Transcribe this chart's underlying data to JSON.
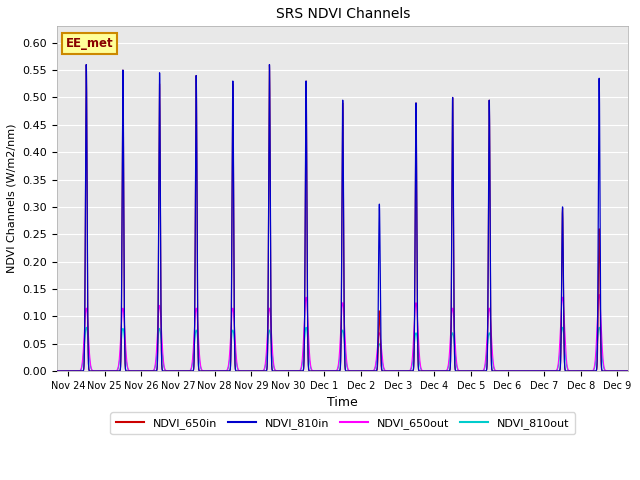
{
  "title": "SRS NDVI Channels",
  "xlabel": "Time",
  "ylabel": "NDVI Channels (W/m2/nm)",
  "ylim": [
    0.0,
    0.63
  ],
  "xlim": [
    -0.3,
    15.3
  ],
  "background_color": "#e8e8e8",
  "annotation_text": "EE_met",
  "annotation_bg": "#ffff99",
  "annotation_border": "#cc8800",
  "legend_labels": [
    "NDVI_650in",
    "NDVI_810in",
    "NDVI_650out",
    "NDVI_810out"
  ],
  "legend_colors": [
    "#cc0000",
    "#0000cc",
    "#ff00ff",
    "#00cccc"
  ],
  "xtick_positions": [
    0,
    1,
    2,
    3,
    4,
    5,
    6,
    7,
    8,
    9,
    10,
    11,
    12,
    13,
    14,
    15
  ],
  "xtick_labels": [
    "Nov 24",
    "Nov 25",
    "Nov 26",
    "Nov 27",
    "Nov 28",
    "Nov 29",
    "Nov 30",
    "Dec 1",
    "Dec 2",
    "Dec 3",
    "Dec 4",
    "Dec 5",
    "Dec 6",
    "Dec 7",
    "Dec 8",
    "Dec 9"
  ],
  "ytick_positions": [
    0.0,
    0.05,
    0.1,
    0.15,
    0.2,
    0.25,
    0.3,
    0.35,
    0.4,
    0.45,
    0.5,
    0.55,
    0.6
  ],
  "day_centers": [
    0.5,
    1.5,
    2.5,
    3.5,
    4.5,
    5.5,
    6.5,
    7.5,
    8.5,
    9.5,
    10.5,
    11.5,
    12.5,
    13.5,
    14.5,
    15.5
  ],
  "day_peaks_810in": [
    0.56,
    0.55,
    0.545,
    0.54,
    0.53,
    0.56,
    0.53,
    0.495,
    0.305,
    0.49,
    0.5,
    0.495,
    0.0,
    0.3,
    0.535,
    0.0
  ],
  "day_peaks_650in": [
    0.56,
    0.55,
    0.525,
    0.54,
    0.525,
    0.56,
    0.53,
    0.49,
    0.11,
    0.49,
    0.5,
    0.495,
    0.0,
    0.298,
    0.26,
    0.0
  ],
  "day_peaks_650out": [
    0.115,
    0.115,
    0.12,
    0.115,
    0.115,
    0.115,
    0.135,
    0.125,
    0.07,
    0.125,
    0.115,
    0.115,
    0.0,
    0.135,
    0.14,
    0.0
  ],
  "day_peaks_810out": [
    0.08,
    0.078,
    0.078,
    0.075,
    0.075,
    0.075,
    0.08,
    0.075,
    0.05,
    0.07,
    0.07,
    0.07,
    0.0,
    0.08,
    0.08,
    0.0
  ],
  "sigma_in": 0.022,
  "sigma_out": 0.055
}
